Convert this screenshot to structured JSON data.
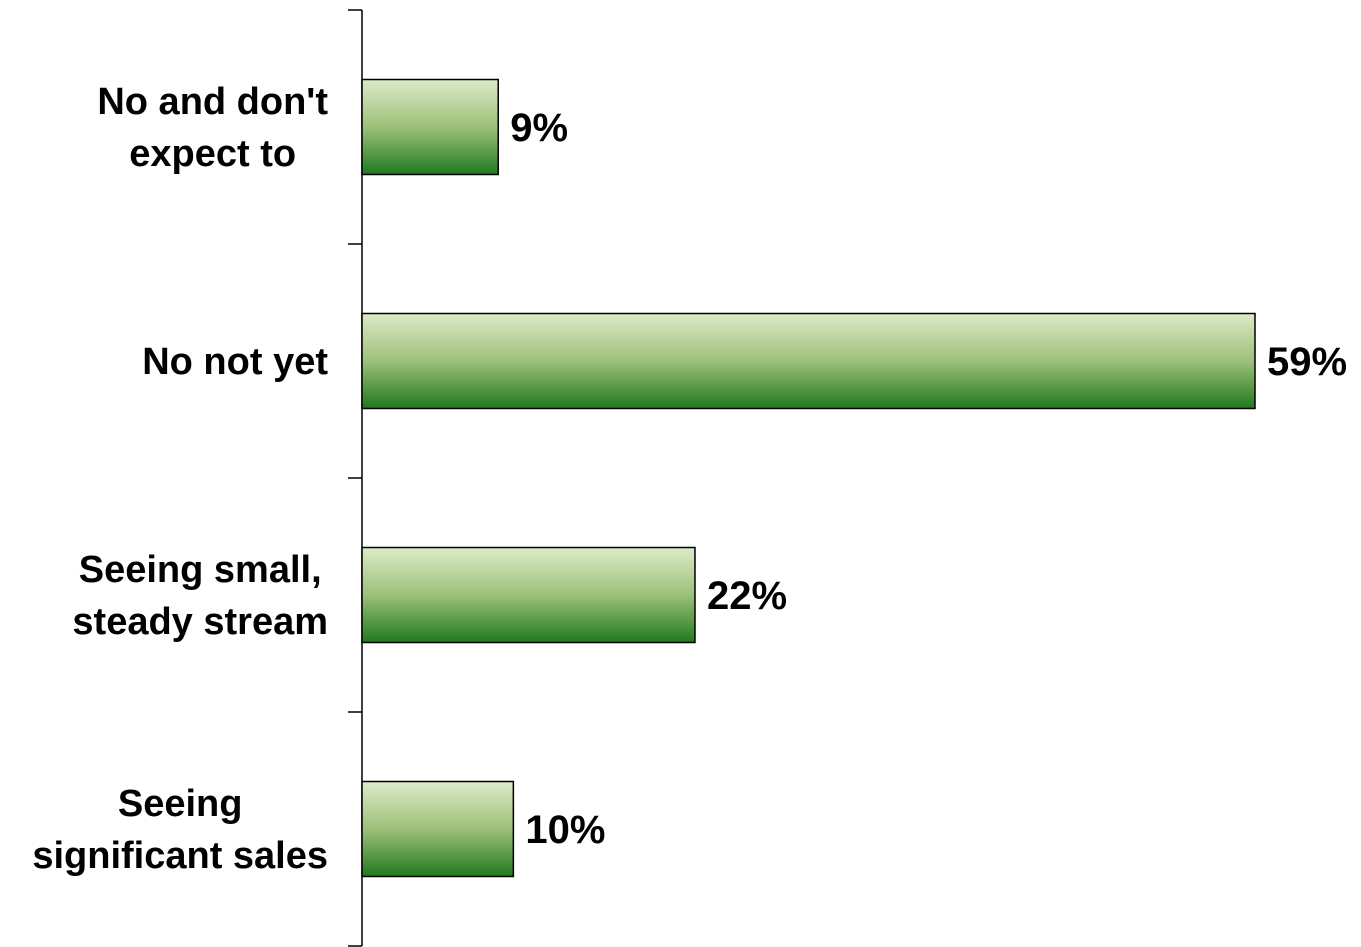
{
  "chart_data": {
    "type": "bar",
    "orientation": "horizontal",
    "categories": [
      [
        "No and don't",
        "expect to"
      ],
      [
        "No not yet"
      ],
      [
        "Seeing small,",
        "steady stream"
      ],
      [
        "Seeing",
        "significant sales"
      ]
    ],
    "values": [
      9,
      59,
      22,
      10
    ],
    "data_labels": [
      "9%",
      "59%",
      "22%",
      "10%"
    ],
    "unit": "%",
    "xlim": [
      0,
      59
    ],
    "grid": false,
    "legend": "none",
    "colors": {
      "bar_top": "#dcebc8",
      "bar_mid": "#9dc07a",
      "bar_bottom": "#1f7a1f",
      "bar_stroke": "#000000",
      "axis": "#000000"
    }
  }
}
